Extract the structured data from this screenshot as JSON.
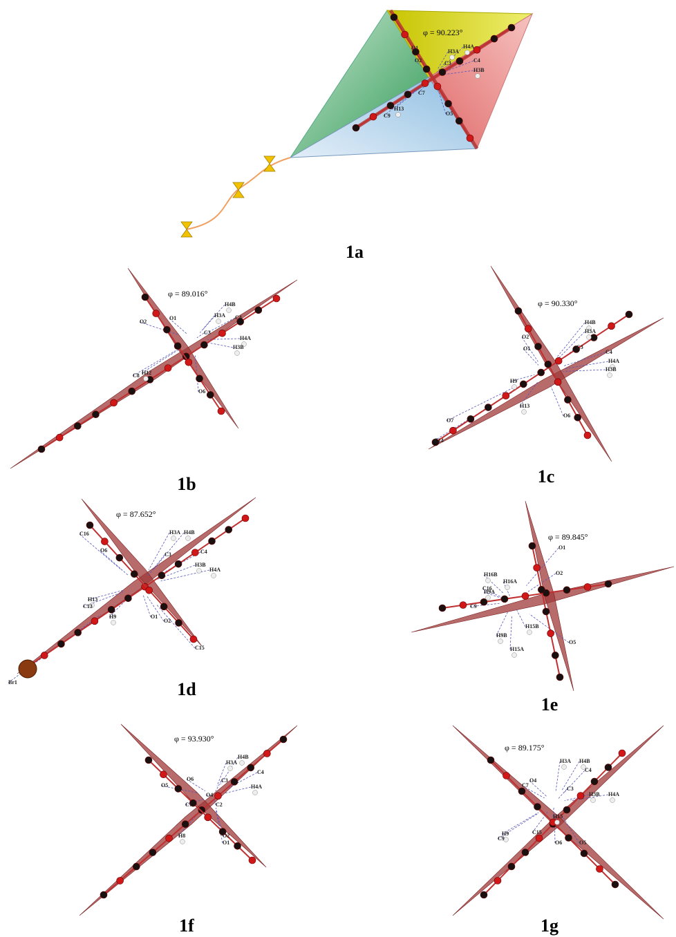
{
  "panels": [
    {
      "label": "1a",
      "angle": "φ = 90.223°",
      "atoms": [
        "O1",
        "O2",
        "H3A",
        "H4A",
        "C3",
        "C4",
        "H3B",
        "C7",
        "H13",
        "C9",
        "O5"
      ]
    },
    {
      "label": "1b",
      "angle": "φ = 89.016°",
      "atoms": [
        "O2",
        "O1",
        "H4B",
        "H3A",
        "C4",
        "C3",
        "H4A",
        "H3B",
        "H12",
        "C8",
        "O6"
      ]
    },
    {
      "label": "1c",
      "angle": "φ = 90.330°",
      "atoms": [
        "H4B",
        "H3A",
        "O2",
        "O1",
        "C3",
        "C4",
        "H4A",
        "H3B",
        "H9",
        "H13",
        "O6",
        "O7",
        "C14"
      ]
    },
    {
      "label": "1d",
      "angle": "φ = 87.652°",
      "atoms": [
        "C16",
        "O6",
        "H3A",
        "H4B",
        "C3",
        "C4",
        "H3B",
        "H4A",
        "H13",
        "C13",
        "H9",
        "O1",
        "O2",
        "C15",
        "Br1"
      ]
    },
    {
      "label": "1e",
      "angle": "φ = 89.845°",
      "atoms": [
        "O1",
        "H16B",
        "H16A",
        "C16",
        "O2",
        "H9A",
        "C9",
        "H15B",
        "H9B",
        "H15A",
        "O5"
      ]
    },
    {
      "label": "1f",
      "angle": "φ = 93.930°",
      "atoms": [
        "H4B",
        "H3A",
        "C4",
        "O5",
        "O6",
        "C3",
        "H4A",
        "O4",
        "C2",
        "C7",
        "H8",
        "O1",
        "O2"
      ]
    },
    {
      "label": "1g",
      "angle": "φ = 89.175°",
      "atoms": [
        "H3A",
        "H4B",
        "C4",
        "O4",
        "C7",
        "C3",
        "H3B",
        "H4A",
        "H15",
        "C15",
        "O6",
        "O5",
        "H9",
        "C9"
      ]
    }
  ]
}
